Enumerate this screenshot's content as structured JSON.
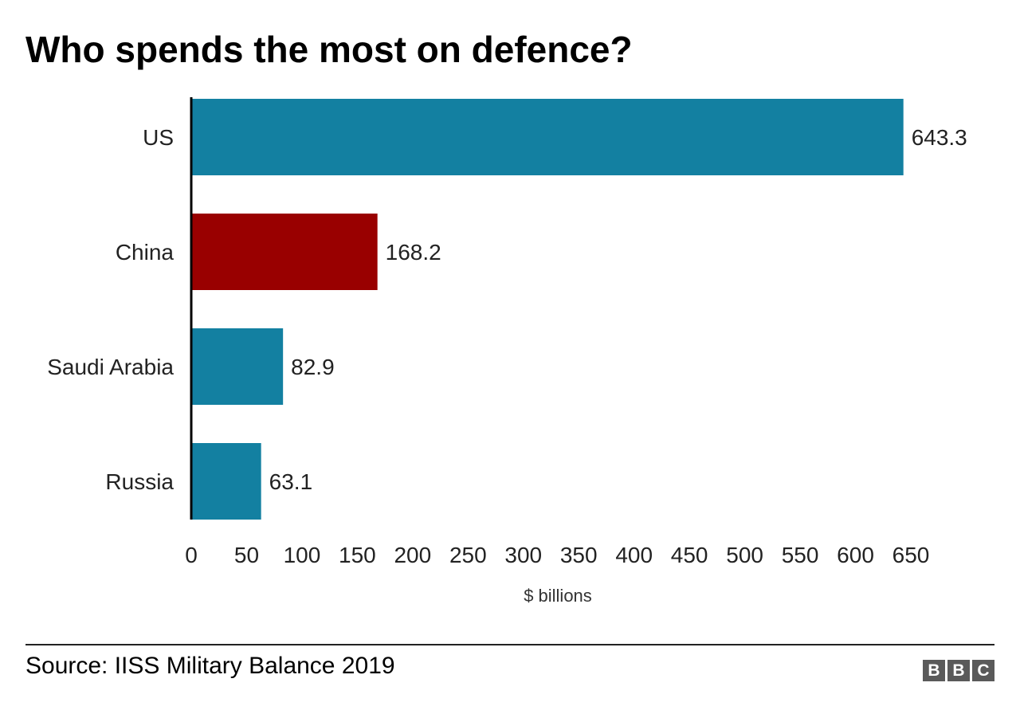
{
  "title": "Who spends the most on defence?",
  "source": "Source: IISS Military Balance 2019",
  "logo": {
    "letters": [
      "B",
      "B",
      "C"
    ],
    "text": "BBC"
  },
  "chart_data": {
    "type": "bar",
    "orientation": "horizontal",
    "title": "Who spends the most on defence?",
    "categories": [
      "US",
      "China",
      "Saudi Arabia",
      "Russia"
    ],
    "values": [
      643.3,
      168.2,
      82.9,
      63.1
    ],
    "value_labels": [
      "643.3",
      "168.2",
      "82.9",
      "63.1"
    ],
    "colors": [
      "#1380a1",
      "#990000",
      "#1380a1",
      "#1380a1"
    ],
    "xlabel": "$ billions",
    "ylabel": "",
    "xlim": [
      0,
      650
    ],
    "xticks": [
      0,
      50,
      100,
      150,
      200,
      250,
      300,
      350,
      400,
      450,
      500,
      550,
      600,
      650
    ],
    "grid": false,
    "legend": "none"
  }
}
